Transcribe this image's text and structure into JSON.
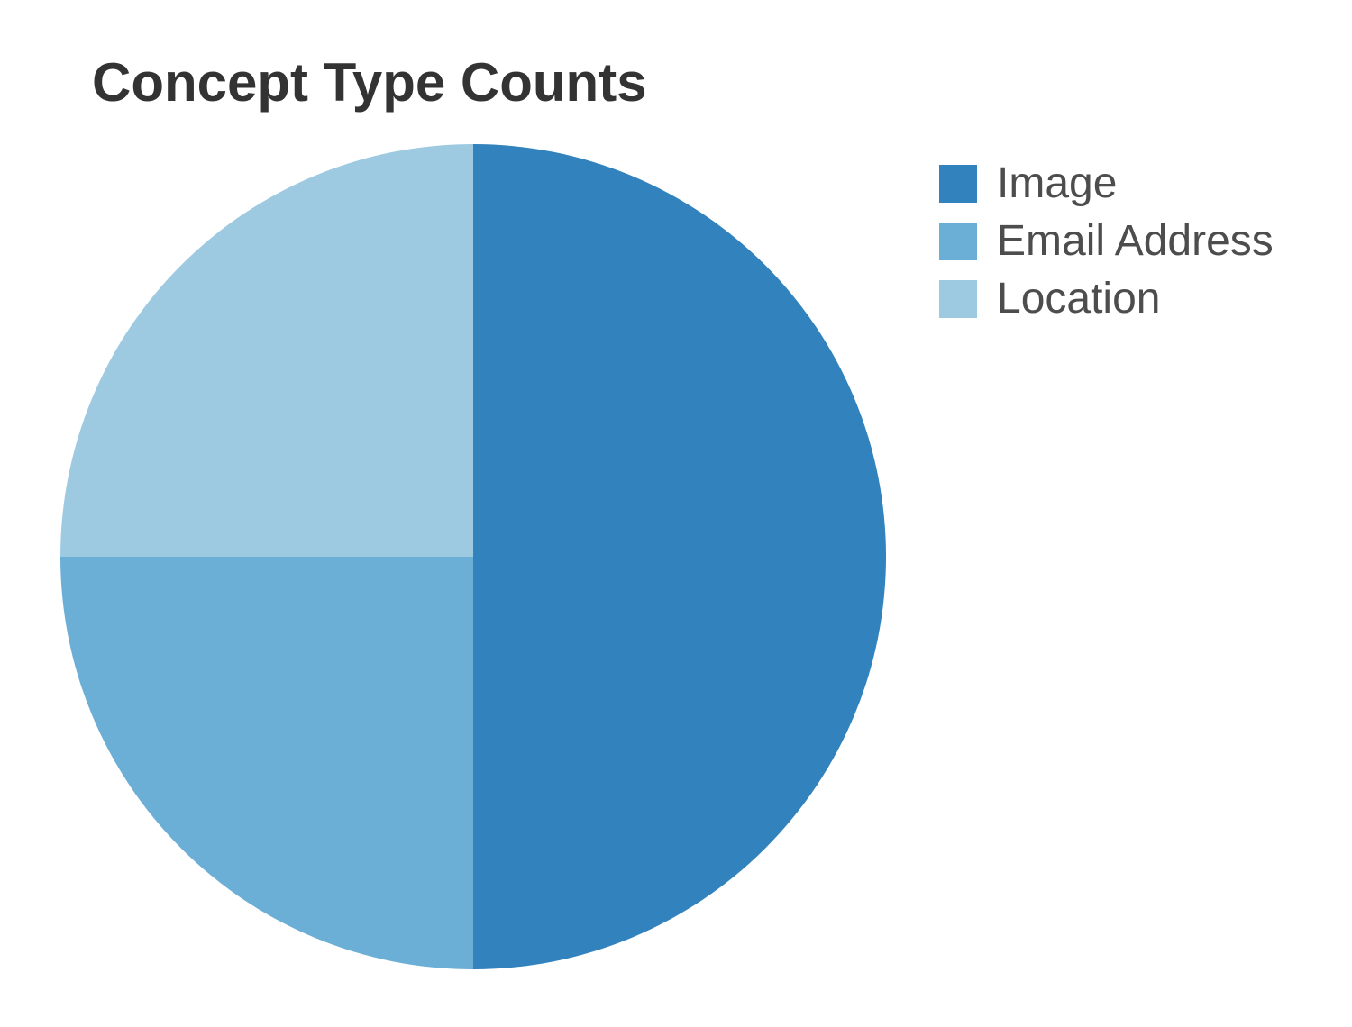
{
  "chart_data": {
    "type": "pie",
    "title": "Concept Type Counts",
    "categories": [
      "Image",
      "Email Address",
      "Location"
    ],
    "values": [
      2,
      1,
      1
    ],
    "colors": [
      "#3182bd",
      "#6baed6",
      "#9ecae1"
    ],
    "legend_position": "right"
  }
}
